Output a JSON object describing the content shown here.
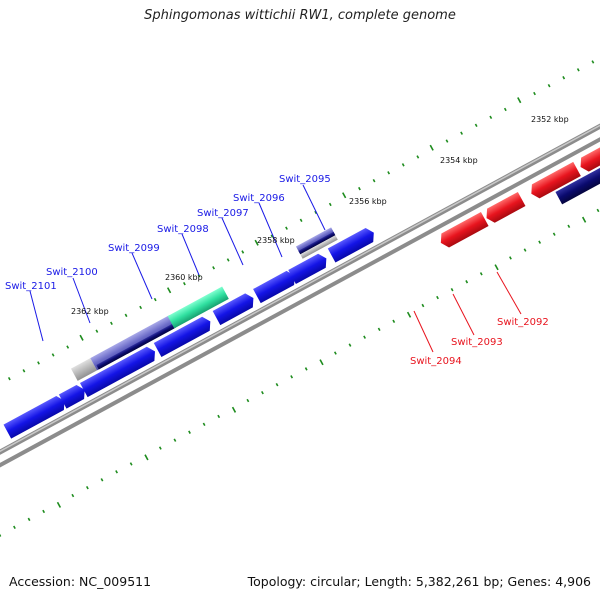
{
  "title": "Sphingomonas wittichii RW1, complete genome",
  "footer": {
    "accession": "Accession: NC_009511",
    "topology": "Topology: circular; Length: 5,382,261 bp; Genes: 4,906"
  },
  "colors": {
    "forward_gene": "#1a1ae6",
    "reverse_gene": "#e8141e",
    "reverse_cds": "#0a0a6e",
    "forward_cds_light": "#6b6bc8",
    "rna": "#30e0a0",
    "backbone": "#8c8c8c",
    "ticks": "#1e8c1e"
  },
  "kbp_labels": [
    "2352 kbp",
    "2354 kbp",
    "2356 kbp",
    "2358 kbp",
    "2360 kbp",
    "2362 kbp"
  ],
  "forward_genes": [
    "Swit_2101",
    "Swit_2100",
    "Swit_2099",
    "Swit_2098",
    "Swit_2097",
    "Swit_2096",
    "Swit_2095"
  ],
  "reverse_genes": [
    "Swit_2094",
    "Swit_2093",
    "Swit_2092"
  ]
}
